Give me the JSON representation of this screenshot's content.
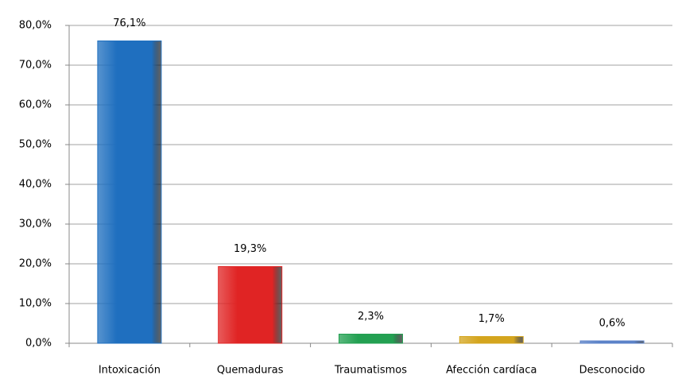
{
  "chart_data": {
    "type": "bar",
    "categories": [
      "Intoxicación",
      "Quemaduras",
      "Traumatismos",
      "Afección cardíaca",
      "Desconocido"
    ],
    "values": [
      76.1,
      19.3,
      2.3,
      1.7,
      0.6
    ],
    "value_labels": [
      "76,1%",
      "19,3%",
      "2,3%",
      "1,7%",
      "0,6%"
    ],
    "colors": [
      "#1f6fbf",
      "#e02424",
      "#23a052",
      "#d4a51e",
      "#5b82c8"
    ],
    "ylim": [
      0,
      80
    ],
    "yticks": [
      {
        "value": 0,
        "label": "0,0%"
      },
      {
        "value": 10,
        "label": "10,0%"
      },
      {
        "value": 20,
        "label": "20,0%"
      },
      {
        "value": 30,
        "label": "30,0%"
      },
      {
        "value": 40,
        "label": "40,0%"
      },
      {
        "value": 50,
        "label": "50,0%"
      },
      {
        "value": 60,
        "label": "60,0%"
      },
      {
        "value": 70,
        "label": "70,0%"
      },
      {
        "value": 80,
        "label": "80,0%"
      }
    ],
    "grid": true
  }
}
